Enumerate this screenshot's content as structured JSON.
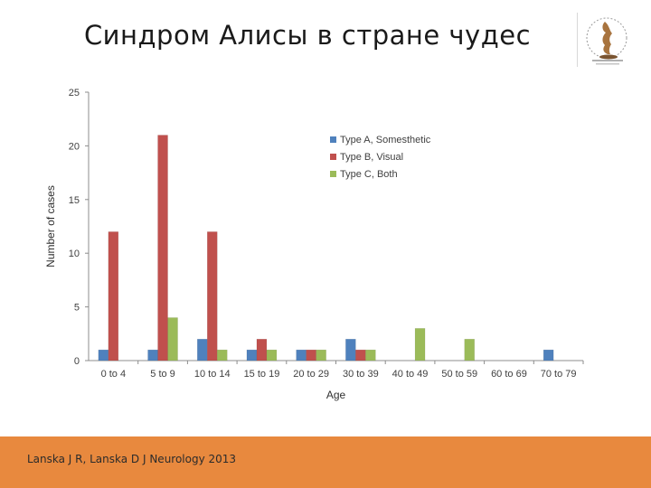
{
  "slide": {
    "title": "Синдром Алисы в стране чудес",
    "citation": "Lanska J R, Lanska D J Neurology 2013"
  },
  "colors": {
    "footer": "#e8893e",
    "series_a": "#4f81bd",
    "series_b": "#c0504d",
    "series_c": "#9bbb59"
  },
  "logo": {
    "icon": "sculpture-emblem-icon"
  },
  "chart_data": {
    "type": "bar",
    "xlabel": "Age",
    "ylabel": "Number of cases",
    "ylim": [
      0,
      25
    ],
    "yticks": [
      0,
      5,
      10,
      15,
      20,
      25
    ],
    "grid": false,
    "legend_position": "right-top",
    "categories": [
      "0 to 4",
      "5 to 9",
      "10 to 14",
      "15 to 19",
      "20 to 29",
      "30 to 39",
      "40 to 49",
      "50 to 59",
      "60 to 69",
      "70 to 79"
    ],
    "series": [
      {
        "name": "Type A, Somesthetic",
        "color": "#4f81bd",
        "values": [
          1,
          1,
          2,
          1,
          1,
          2,
          0,
          0,
          0,
          1
        ]
      },
      {
        "name": "Type B, Visual",
        "color": "#c0504d",
        "values": [
          12,
          21,
          12,
          2,
          1,
          1,
          0,
          0,
          0,
          0
        ]
      },
      {
        "name": "Type C, Both",
        "color": "#9bbb59",
        "values": [
          0,
          4,
          1,
          1,
          1,
          1,
          3,
          2,
          0,
          0
        ]
      }
    ]
  }
}
